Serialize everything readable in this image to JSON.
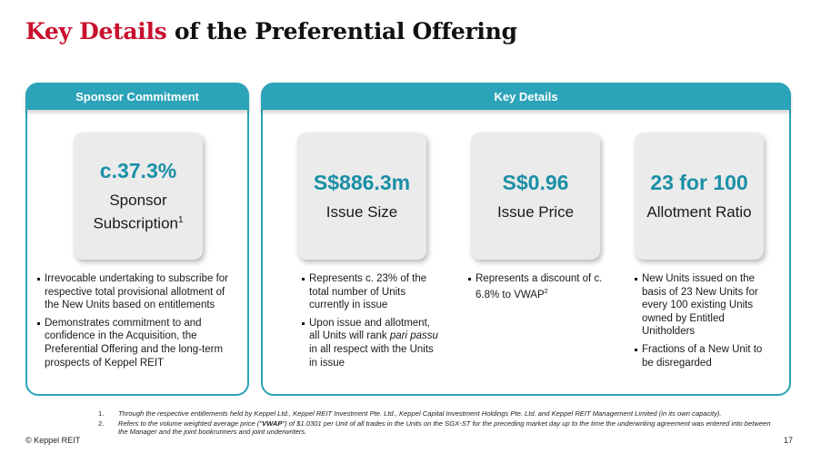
{
  "slide": {
    "title_accent": "Key Details",
    "title_rest": "of the Preferential Offering",
    "copyright": "© Keppel REIT",
    "page_number": "17"
  },
  "sponsor": {
    "header": "Sponsor Commitment",
    "stat_value": "c.37.3%",
    "stat_label_line1": "Sponsor",
    "stat_label_line2": "Subscription",
    "stat_label_sup": "1",
    "bullets": [
      "Irrevocable undertaking to subscribe for respective total provisional allotment of the New Units based on entitlements",
      "Demonstrates commitment to and confidence in the Acquisition, the Preferential Offering and the long-term prospects of Keppel REIT"
    ]
  },
  "key_details": {
    "header": "Key Details",
    "issue_size": {
      "value": "S$886.3m",
      "label": "Issue Size",
      "bullet1": "Represents c. 23% of the total number of Units currently in issue",
      "bullet2_pre": "Upon issue and allotment, all Units will rank ",
      "bullet2_italic": "pari passu",
      "bullet2_post": " in all respect with the Units in issue"
    },
    "issue_price": {
      "value": "S$0.96",
      "label": "Issue Price",
      "bullet1_text": "Represents a discount of c. 6.8% to VWAP",
      "bullet1_sup": "2"
    },
    "allotment_ratio": {
      "value": "23 for 100",
      "label": "Allotment Ratio",
      "bullets": [
        "New Units issued on the basis of 23 New Units for every 100 existing Units owned by Entitled Unitholders",
        "Fractions of a New Unit to be disregarded"
      ]
    }
  },
  "footnotes": {
    "fn1_num": "1.",
    "fn1_text": "Through the respective entitlements held by Keppel Ltd., Keppel REIT Investment Pte. Ltd., Keppel Capital Investment Holdings Pte. Ltd. and Keppel REIT Management Limited (in its own capacity).",
    "fn2_num": "2.",
    "fn2_pre": "Refers to the volume weighted average price (\"",
    "fn2_bold": "VWAP",
    "fn2_post": "\") of $1.0301 per Unit of all trades in the Units on the SGX-ST for the preceding market day up to the time the underwriting agreement was entered into between the Manager and the joint bookrunners and joint underwriters."
  },
  "colors": {
    "accent_red": "#c8102e",
    "teal": "#2ba3b8",
    "stat_teal": "#1a8fa6",
    "card_grey": "#ebebeb"
  }
}
